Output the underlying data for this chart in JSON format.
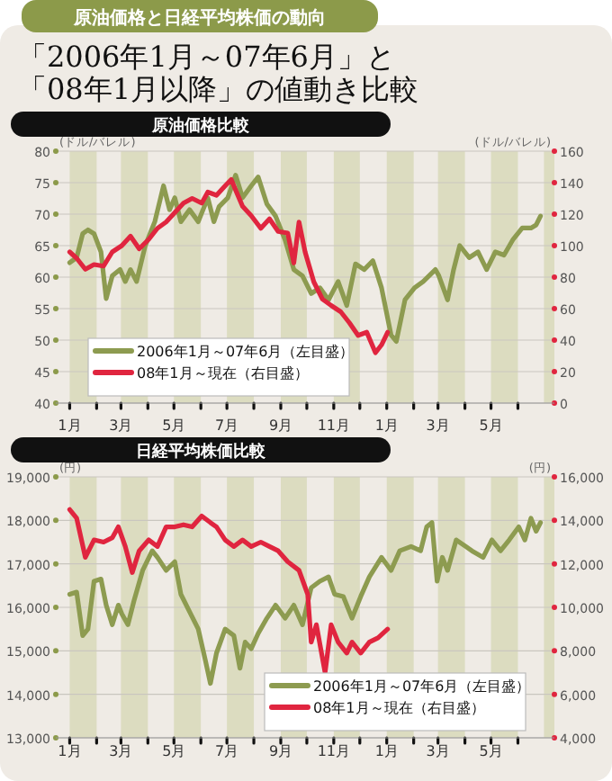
{
  "chart_data": [
    {
      "type": "line",
      "title": "原油価格比較",
      "annotations": [
        "原油価格と日経平均株価の動向",
        "「2006年1月～07年6月」と",
        "「08年1月以降」の値動き比較"
      ],
      "ylabel": "(ドル/バレル)",
      "y2label": "(ドル/バレル)",
      "xlim": [
        "2005-12-16",
        "2007-07-13"
      ],
      "ylim": [
        40,
        80
      ],
      "yticks": [
        40,
        45,
        50,
        55,
        60,
        65,
        70,
        75,
        80
      ],
      "y2lim": [
        0,
        160
      ],
      "y2ticks": [
        0,
        20,
        40,
        60,
        80,
        100,
        120,
        140,
        160
      ],
      "xticks": [
        {
          "value": "2006-01-01",
          "label": "1月"
        },
        {
          "value": "2006-02-01",
          "label": null
        },
        {
          "value": "2006-03-01",
          "label": "3月"
        },
        {
          "value": "2006-04-01",
          "label": null
        },
        {
          "value": "2006-05-01",
          "label": "5月"
        },
        {
          "value": "2006-06-01",
          "label": null
        },
        {
          "value": "2006-07-01",
          "label": "7月"
        },
        {
          "value": "2006-08-01",
          "label": null
        },
        {
          "value": "2006-09-01",
          "label": "9月"
        },
        {
          "value": "2006-10-01",
          "label": null
        },
        {
          "value": "2006-11-01",
          "label": "11月"
        },
        {
          "value": "2006-12-01",
          "label": null
        },
        {
          "value": "2007-01-01",
          "label": "1月"
        },
        {
          "value": "2007-02-01",
          "label": null
        },
        {
          "value": "2007-03-01",
          "label": "3月"
        },
        {
          "value": "2007-04-01",
          "label": null
        },
        {
          "value": "2007-05-01",
          "label": "5月"
        },
        {
          "value": "2007-06-01",
          "label": null
        }
      ],
      "grid": "y",
      "legend": "bottom left",
      "bands": [
        {
          "axis": "x",
          "from": "2006-01-01",
          "to": "2006-02-01",
          "color": "#dcdcc0"
        },
        {
          "axis": "x",
          "from": "2006-03-01",
          "to": "2006-04-01",
          "color": "#dcdcc0"
        },
        {
          "axis": "x",
          "from": "2006-05-01",
          "to": "2006-06-01",
          "color": "#dcdcc0"
        },
        {
          "axis": "x",
          "from": "2006-07-01",
          "to": "2006-08-01",
          "color": "#dcdcc0"
        },
        {
          "axis": "x",
          "from": "2006-09-01",
          "to": "2006-10-01",
          "color": "#dcdcc0"
        },
        {
          "axis": "x",
          "from": "2006-11-01",
          "to": "2006-12-01",
          "color": "#dcdcc0"
        },
        {
          "axis": "x",
          "from": "2007-01-01",
          "to": "2007-02-01",
          "color": "#dcdcc0"
        },
        {
          "axis": "x",
          "from": "2007-03-01",
          "to": "2007-04-01",
          "color": "#dcdcc0"
        },
        {
          "axis": "x",
          "from": "2007-05-01",
          "to": "2007-06-01",
          "color": "#dcdcc0"
        },
        {
          "axis": "x",
          "from": "2007-07-01",
          "to": "2007-07-13",
          "color": "#dcdcc0"
        }
      ],
      "series": [
        {
          "name": "2006年1月～07年6月（左目盛）",
          "color": "#8d9b50",
          "x": [
            "2006-01-01",
            "2006-01-09",
            "2006-01-16",
            "2006-01-22",
            "2006-01-29",
            "2006-02-06",
            "2006-02-12",
            "2006-02-19",
            "2006-02-28",
            "2006-03-06",
            "2006-03-12",
            "2006-03-19",
            "2006-03-29",
            "2006-04-09",
            "2006-04-19",
            "2006-04-26",
            "2006-05-02",
            "2006-05-09",
            "2006-05-19",
            "2006-05-29",
            "2006-06-09",
            "2006-06-16",
            "2006-06-22",
            "2006-07-02",
            "2006-07-11",
            "2006-07-19",
            "2006-07-29",
            "2006-08-06",
            "2006-08-16",
            "2006-08-26",
            "2006-09-06",
            "2006-09-16",
            "2006-09-26",
            "2006-10-06",
            "2006-10-16",
            "2006-10-26",
            "2006-11-06",
            "2006-11-16",
            "2006-11-26",
            "2006-12-06",
            "2006-12-16",
            "2006-12-26",
            "2007-01-06",
            "2007-01-12",
            "2007-01-22",
            "2007-02-02",
            "2007-02-12",
            "2007-02-26",
            "2007-03-02",
            "2007-03-12",
            "2007-03-19",
            "2007-03-26",
            "2007-04-06",
            "2007-04-16",
            "2007-04-26",
            "2007-05-06",
            "2007-05-16",
            "2007-05-26",
            "2007-06-06",
            "2007-06-16",
            "2007-06-22",
            "2007-06-27"
          ],
          "values": [
            62.3,
            63.1,
            66.9,
            67.5,
            66.9,
            64,
            56.6,
            60.2,
            61.2,
            59.3,
            61.2,
            59.3,
            65,
            68.8,
            74.5,
            70.7,
            72.6,
            68.8,
            70.7,
            68.8,
            72.6,
            68.8,
            71.2,
            72.6,
            76.2,
            72.6,
            74.5,
            75.9,
            71.6,
            69.7,
            65.9,
            61.2,
            60.2,
            57.4,
            58.3,
            56.4,
            59.3,
            55.5,
            62.1,
            61.2,
            62.6,
            58.3,
            50.8,
            49.8,
            56.4,
            58.3,
            59.3,
            61.2,
            60.2,
            56.4,
            61.2,
            65,
            63.1,
            64,
            61.2,
            64,
            63.5,
            65.9,
            67.8,
            67.8,
            68.3,
            69.7
          ]
        },
        {
          "name": "08年1月～現在（右目盛）",
          "color": "#e0253f",
          "axis": "y2",
          "x": [
            "2006-01-01",
            "2006-01-09",
            "2006-01-19",
            "2006-01-29",
            "2006-02-09",
            "2006-02-19",
            "2006-03-02",
            "2006-03-12",
            "2006-03-22",
            "2006-04-02",
            "2006-04-12",
            "2006-04-22",
            "2006-05-02",
            "2006-05-12",
            "2006-05-22",
            "2006-06-02",
            "2006-06-09",
            "2006-06-19",
            "2006-06-29",
            "2006-07-06",
            "2006-07-12",
            "2006-07-19",
            "2006-07-29",
            "2006-08-09",
            "2006-08-19",
            "2006-08-29",
            "2006-09-09",
            "2006-09-16",
            "2006-09-22",
            "2006-09-29",
            "2006-10-09",
            "2006-10-19",
            "2006-10-29",
            "2006-11-09",
            "2006-11-19",
            "2006-11-29",
            "2006-12-09",
            "2006-12-19",
            "2006-12-26",
            "2007-01-02"
          ],
          "values": [
            96,
            92,
            85,
            88,
            87,
            96,
            100,
            106,
            98,
            104,
            111,
            115,
            121,
            127,
            130,
            127,
            134,
            132,
            138,
            142,
            134,
            125,
            119,
            111,
            117,
            109,
            108,
            89,
            115,
            96,
            77,
            66,
            62,
            58,
            51,
            43,
            45,
            32,
            37,
            45
          ]
        }
      ]
    },
    {
      "type": "line",
      "title": "日経平均株価比較",
      "ylabel": "(円)",
      "y2label": "(円)",
      "xlim": [
        "2005-12-16",
        "2007-07-13"
      ],
      "ylim": [
        13000,
        19000
      ],
      "yticks": [
        {
          "value": 13000,
          "label": "13,000"
        },
        {
          "value": 14000,
          "label": "14,000"
        },
        {
          "value": 15000,
          "label": "15,000"
        },
        {
          "value": 16000,
          "label": "16,000"
        },
        {
          "value": 17000,
          "label": "17,000"
        },
        {
          "value": 18000,
          "label": "18,000"
        },
        {
          "value": 19000,
          "label": "19,000"
        }
      ],
      "y2lim": [
        4000,
        16000
      ],
      "y2ticks": [
        {
          "value": 4000,
          "label": "4,000"
        },
        {
          "value": 6000,
          "label": "6,000"
        },
        {
          "value": 8000,
          "label": "8,000"
        },
        {
          "value": 10000,
          "label": "10,000"
        },
        {
          "value": 12000,
          "label": "12,000"
        },
        {
          "value": 14000,
          "label": "14,000"
        },
        {
          "value": 16000,
          "label": "16,000"
        }
      ],
      "xticks": [
        {
          "value": "2006-01-01",
          "label": "1月"
        },
        {
          "value": "2006-02-01",
          "label": null
        },
        {
          "value": "2006-03-01",
          "label": "3月"
        },
        {
          "value": "2006-04-01",
          "label": null
        },
        {
          "value": "2006-05-01",
          "label": "5月"
        },
        {
          "value": "2006-06-01",
          "label": null
        },
        {
          "value": "2006-07-01",
          "label": "7月"
        },
        {
          "value": "2006-08-01",
          "label": null
        },
        {
          "value": "2006-09-01",
          "label": "9月"
        },
        {
          "value": "2006-10-01",
          "label": null
        },
        {
          "value": "2006-11-01",
          "label": "11月"
        },
        {
          "value": "2006-12-01",
          "label": null
        },
        {
          "value": "2007-01-01",
          "label": "1月"
        },
        {
          "value": "2007-02-01",
          "label": null
        },
        {
          "value": "2007-03-01",
          "label": "3月"
        },
        {
          "value": "2007-04-01",
          "label": null
        },
        {
          "value": "2007-05-01",
          "label": "5月"
        },
        {
          "value": "2007-06-01",
          "label": null
        }
      ],
      "grid": "y",
      "legend": "bottom right",
      "bands": [
        {
          "axis": "x",
          "from": "2006-01-01",
          "to": "2006-02-01",
          "color": "#dcdcc0"
        },
        {
          "axis": "x",
          "from": "2006-03-01",
          "to": "2006-04-01",
          "color": "#dcdcc0"
        },
        {
          "axis": "x",
          "from": "2006-05-01",
          "to": "2006-06-01",
          "color": "#dcdcc0"
        },
        {
          "axis": "x",
          "from": "2006-07-01",
          "to": "2006-08-01",
          "color": "#dcdcc0"
        },
        {
          "axis": "x",
          "from": "2006-09-01",
          "to": "2006-10-01",
          "color": "#dcdcc0"
        },
        {
          "axis": "x",
          "from": "2006-11-01",
          "to": "2006-12-01",
          "color": "#dcdcc0"
        },
        {
          "axis": "x",
          "from": "2007-01-01",
          "to": "2007-02-01",
          "color": "#dcdcc0"
        },
        {
          "axis": "x",
          "from": "2007-03-01",
          "to": "2007-04-01",
          "color": "#dcdcc0"
        },
        {
          "axis": "x",
          "from": "2007-05-01",
          "to": "2007-06-01",
          "color": "#dcdcc0"
        },
        {
          "axis": "x",
          "from": "2007-07-01",
          "to": "2007-07-13",
          "color": "#dcdcc0"
        }
      ],
      "series": [
        {
          "name": "2006年1月～07年6月（左目盛）",
          "color": "#8d9b50",
          "x": [
            "2006-01-01",
            "2006-01-09",
            "2006-01-16",
            "2006-01-22",
            "2006-01-29",
            "2006-02-06",
            "2006-02-12",
            "2006-02-19",
            "2006-02-26",
            "2006-03-02",
            "2006-03-09",
            "2006-03-16",
            "2006-03-26",
            "2006-04-06",
            "2006-04-12",
            "2006-04-22",
            "2006-05-02",
            "2006-05-09",
            "2006-05-19",
            "2006-05-29",
            "2006-06-06",
            "2006-06-12",
            "2006-06-19",
            "2006-06-29",
            "2006-07-09",
            "2006-07-16",
            "2006-07-22",
            "2006-07-29",
            "2006-08-06",
            "2006-08-16",
            "2006-08-26",
            "2006-09-06",
            "2006-09-16",
            "2006-09-26",
            "2006-10-06",
            "2006-10-16",
            "2006-10-26",
            "2006-11-02",
            "2006-11-12",
            "2006-11-22",
            "2006-12-02",
            "2006-12-12",
            "2006-12-26",
            "2007-01-06",
            "2007-01-16",
            "2007-01-29",
            "2007-02-09",
            "2007-02-16",
            "2007-02-22",
            "2007-02-28",
            "2007-03-06",
            "2007-03-12",
            "2007-03-22",
            "2007-04-02",
            "2007-04-09",
            "2007-04-22",
            "2007-05-02",
            "2007-05-12",
            "2007-05-22",
            "2007-06-02",
            "2007-06-09",
            "2007-06-16",
            "2007-06-22",
            "2007-06-27"
          ],
          "values": [
            16300,
            16350,
            15350,
            15500,
            16600,
            16650,
            16050,
            15600,
            16050,
            15850,
            15600,
            16150,
            16850,
            17300,
            17150,
            16850,
            17050,
            16300,
            15900,
            15500,
            14800,
            14250,
            14950,
            15500,
            15350,
            14600,
            15200,
            15050,
            15400,
            15750,
            16050,
            15750,
            16050,
            15600,
            16450,
            16600,
            16700,
            16300,
            16250,
            15750,
            16250,
            16700,
            17150,
            16850,
            17300,
            17400,
            17300,
            17850,
            17950,
            16600,
            17150,
            16850,
            17550,
            17400,
            17300,
            17150,
            17550,
            17300,
            17550,
            17850,
            17550,
            18050,
            17750,
            17950
          ]
        },
        {
          "name": "08年1月～現在（右目盛）",
          "color": "#e0253f",
          "axis": "y2",
          "x": [
            "2006-01-01",
            "2006-01-09",
            "2006-01-19",
            "2006-01-29",
            "2006-02-09",
            "2006-02-19",
            "2006-02-26",
            "2006-03-06",
            "2006-03-14",
            "2006-03-22",
            "2006-04-02",
            "2006-04-12",
            "2006-04-22",
            "2006-05-02",
            "2006-05-12",
            "2006-05-22",
            "2006-06-02",
            "2006-06-12",
            "2006-06-19",
            "2006-06-29",
            "2006-07-09",
            "2006-07-19",
            "2006-07-29",
            "2006-08-09",
            "2006-08-19",
            "2006-08-29",
            "2006-09-09",
            "2006-09-22",
            "2006-10-02",
            "2006-10-06",
            "2006-10-12",
            "2006-10-22",
            "2006-10-29",
            "2006-11-06",
            "2006-11-16",
            "2006-11-22",
            "2006-12-02",
            "2006-12-12",
            "2006-12-22",
            "2007-01-02"
          ],
          "values": [
            14500,
            14100,
            12300,
            13100,
            13000,
            13200,
            13700,
            12800,
            11600,
            12600,
            13100,
            12800,
            13700,
            13700,
            13800,
            13700,
            14200,
            13900,
            13700,
            13100,
            12800,
            13100,
            12800,
            13000,
            12800,
            12600,
            12100,
            11700,
            10600,
            8400,
            9200,
            7000,
            9200,
            8400,
            7900,
            8400,
            7900,
            8400,
            8600,
            9000
          ]
        }
      ]
    }
  ]
}
